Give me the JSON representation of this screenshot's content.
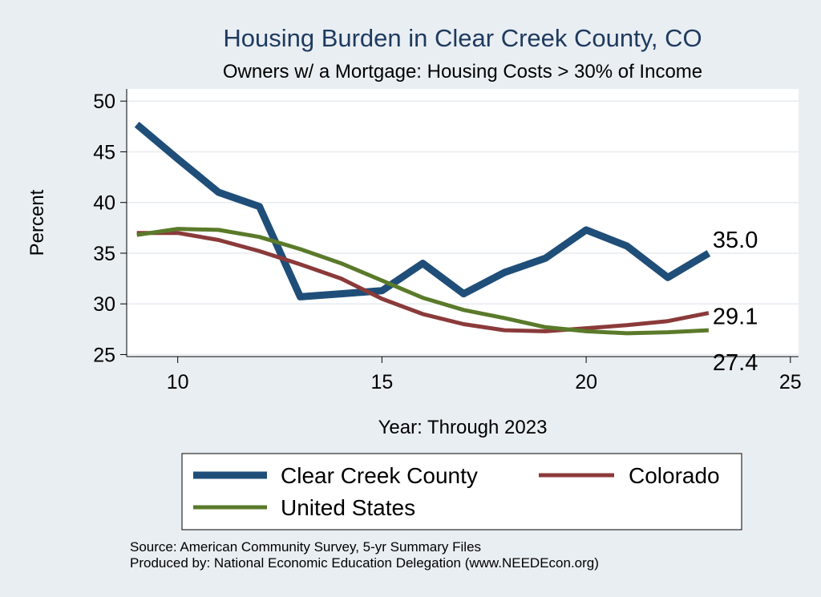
{
  "chart_data": {
    "type": "line",
    "title": "Housing Burden in Clear Creek County, CO",
    "subtitle": "Owners w/ a Mortgage: Housing Costs > 30% of Income",
    "xlabel": "Year: Through 2023",
    "ylabel": "Percent",
    "xlim": [
      8.75,
      25.2
    ],
    "ylim": [
      24.8,
      51.2
    ],
    "xticks": [
      10,
      15,
      20,
      25
    ],
    "yticks": [
      25,
      30,
      35,
      40,
      45,
      50
    ],
    "grid": true,
    "legend_position": "bottom",
    "series": [
      {
        "name": "Clear Creek County",
        "color": "#1f4e79",
        "x": [
          9,
          10,
          11,
          12,
          13,
          14,
          15,
          16,
          17,
          18,
          19,
          20,
          21,
          22,
          23
        ],
        "values": [
          47.7,
          44.3,
          41.0,
          39.6,
          30.7,
          31.0,
          31.3,
          34.0,
          31.0,
          33.1,
          34.5,
          37.3,
          35.7,
          32.6,
          35.0
        ],
        "end_label": "35.0"
      },
      {
        "name": "Colorado",
        "color": "#8b3a3a",
        "x": [
          9,
          10,
          11,
          12,
          13,
          14,
          15,
          16,
          17,
          18,
          19,
          20,
          21,
          22,
          23
        ],
        "values": [
          37.0,
          37.0,
          36.3,
          35.2,
          33.9,
          32.5,
          30.5,
          29.0,
          28.0,
          27.4,
          27.3,
          27.6,
          27.9,
          28.3,
          29.1
        ],
        "end_label": "29.1"
      },
      {
        "name": "United States",
        "color": "#5a7a2a",
        "x": [
          9,
          10,
          11,
          12,
          13,
          14,
          15,
          16,
          17,
          18,
          19,
          20,
          21,
          22,
          23
        ],
        "values": [
          36.8,
          37.4,
          37.3,
          36.6,
          35.4,
          34.0,
          32.3,
          30.6,
          29.4,
          28.6,
          27.7,
          27.3,
          27.1,
          27.2,
          27.4
        ],
        "end_label": "27.4"
      }
    ]
  },
  "notes": {
    "source": "Source: American Community Survey, 5-yr Summary Files",
    "producer": "Produced by: National Economic Education Delegation (www.NEEDEcon.org)"
  }
}
